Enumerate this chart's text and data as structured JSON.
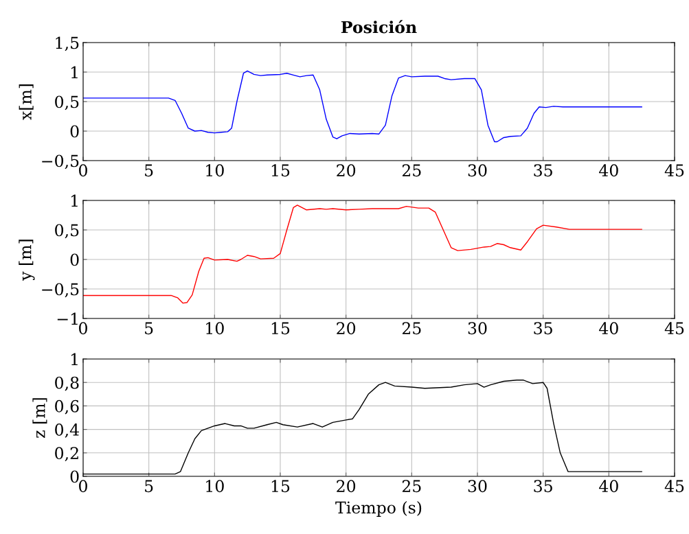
{
  "chart_data": [
    {
      "type": "line",
      "title": "Posición",
      "ylabel": "x[m]",
      "grid": true,
      "xlim": [
        0,
        45
      ],
      "xticks": [
        0,
        5,
        10,
        15,
        20,
        25,
        30,
        35,
        40,
        45
      ],
      "ylim": [
        -0.5,
        1.5
      ],
      "yticks": [
        {
          "value": -0.5,
          "label": "−0,5"
        },
        0,
        {
          "value": 0.5,
          "label": "0,5"
        },
        1,
        {
          "value": 1.5,
          "label": "1,5"
        }
      ],
      "series": [
        {
          "color": "#0000ff",
          "x": [
            0,
            6.5,
            7,
            7.5,
            8,
            8.5,
            9,
            9.5,
            10,
            10.5,
            11,
            11.3,
            11.7,
            12.2,
            12.5,
            13,
            13.5,
            14,
            15,
            15.5,
            16,
            16.5,
            17,
            17.5,
            18,
            18.5,
            19,
            19.3,
            19.7,
            20.3,
            21,
            22,
            22.5,
            23,
            23.5,
            24,
            24.5,
            25,
            26,
            27,
            27.5,
            28,
            29,
            29.8,
            30.3,
            30.8,
            31.3,
            31.5,
            32,
            32.5,
            33.3,
            33.8,
            34.3,
            34.7,
            35.2,
            35.8,
            36.5,
            42.5
          ],
          "values": [
            0.56,
            0.56,
            0.52,
            0.3,
            0.05,
            0.0,
            0.01,
            -0.02,
            -0.03,
            -0.02,
            -0.01,
            0.05,
            0.5,
            0.98,
            1.02,
            0.96,
            0.94,
            0.95,
            0.96,
            0.98,
            0.95,
            0.92,
            0.94,
            0.95,
            0.7,
            0.2,
            -0.1,
            -0.13,
            -0.08,
            -0.04,
            -0.05,
            -0.04,
            -0.05,
            0.1,
            0.6,
            0.9,
            0.94,
            0.92,
            0.93,
            0.93,
            0.89,
            0.87,
            0.89,
            0.89,
            0.7,
            0.1,
            -0.18,
            -0.18,
            -0.11,
            -0.09,
            -0.08,
            0.05,
            0.3,
            0.41,
            0.4,
            0.42,
            0.41,
            0.41
          ]
        }
      ]
    },
    {
      "type": "line",
      "ylabel": "y [m]",
      "grid": true,
      "xlim": [
        0,
        45
      ],
      "xticks": [
        0,
        5,
        10,
        15,
        20,
        25,
        30,
        35,
        40,
        45
      ],
      "ylim": [
        -1,
        1
      ],
      "yticks": [
        {
          "value": -1,
          "label": "−1"
        },
        {
          "value": -0.5,
          "label": "−0,5"
        },
        0,
        {
          "value": 0.5,
          "label": "0,5"
        },
        1
      ],
      "series": [
        {
          "color": "#ff0000",
          "x": [
            0,
            6.7,
            7.2,
            7.6,
            7.9,
            8.3,
            8.8,
            9.2,
            9.5,
            10,
            11,
            11.7,
            12,
            12.5,
            13,
            13.5,
            14.5,
            15,
            15.5,
            16,
            16.3,
            17,
            18,
            18.5,
            19,
            20,
            21,
            22,
            23,
            24,
            24.6,
            25.5,
            26.3,
            26.8,
            27.5,
            28,
            28.5,
            29.5,
            30.5,
            31,
            31.5,
            32,
            32.5,
            33.3,
            33.8,
            34.5,
            35,
            36,
            37,
            42.5
          ],
          "values": [
            -0.61,
            -0.61,
            -0.65,
            -0.74,
            -0.73,
            -0.6,
            -0.2,
            0.02,
            0.03,
            -0.01,
            0.0,
            -0.03,
            0.0,
            0.07,
            0.05,
            0.01,
            0.02,
            0.1,
            0.5,
            0.88,
            0.92,
            0.84,
            0.86,
            0.85,
            0.86,
            0.84,
            0.85,
            0.86,
            0.86,
            0.86,
            0.9,
            0.87,
            0.87,
            0.8,
            0.45,
            0.2,
            0.15,
            0.17,
            0.21,
            0.22,
            0.27,
            0.25,
            0.2,
            0.16,
            0.3,
            0.52,
            0.58,
            0.55,
            0.51,
            0.51
          ]
        }
      ]
    },
    {
      "type": "line",
      "xlabel": "Tiempo (s)",
      "ylabel": "z [m]",
      "grid": true,
      "xlim": [
        0,
        45
      ],
      "xticks": [
        0,
        5,
        10,
        15,
        20,
        25,
        30,
        35,
        40,
        45
      ],
      "ylim": [
        0,
        1
      ],
      "yticks": [
        0,
        {
          "value": 0.2,
          "label": "0,2"
        },
        {
          "value": 0.4,
          "label": "0,4"
        },
        {
          "value": 0.6,
          "label": "0,6"
        },
        {
          "value": 0.8,
          "label": "0,8"
        },
        1
      ],
      "series": [
        {
          "color": "#000000",
          "x": [
            0,
            7,
            7.4,
            8,
            8.5,
            9,
            10,
            10.8,
            11.5,
            12,
            12.5,
            13,
            14,
            14.7,
            15.2,
            16.3,
            17.5,
            18.2,
            19,
            20,
            20.5,
            21,
            21.7,
            22.5,
            23,
            23.7,
            25,
            26,
            28,
            29,
            30,
            30.5,
            31,
            32,
            33,
            33.5,
            34.2,
            35,
            35.3,
            35.8,
            36.3,
            36.9,
            42.5
          ],
          "values": [
            0.02,
            0.02,
            0.04,
            0.2,
            0.32,
            0.39,
            0.43,
            0.45,
            0.43,
            0.43,
            0.41,
            0.41,
            0.44,
            0.46,
            0.44,
            0.42,
            0.45,
            0.42,
            0.46,
            0.48,
            0.49,
            0.57,
            0.7,
            0.78,
            0.8,
            0.77,
            0.76,
            0.75,
            0.76,
            0.78,
            0.79,
            0.76,
            0.78,
            0.81,
            0.82,
            0.82,
            0.79,
            0.8,
            0.75,
            0.45,
            0.2,
            0.04,
            0.04
          ]
        }
      ]
    }
  ]
}
